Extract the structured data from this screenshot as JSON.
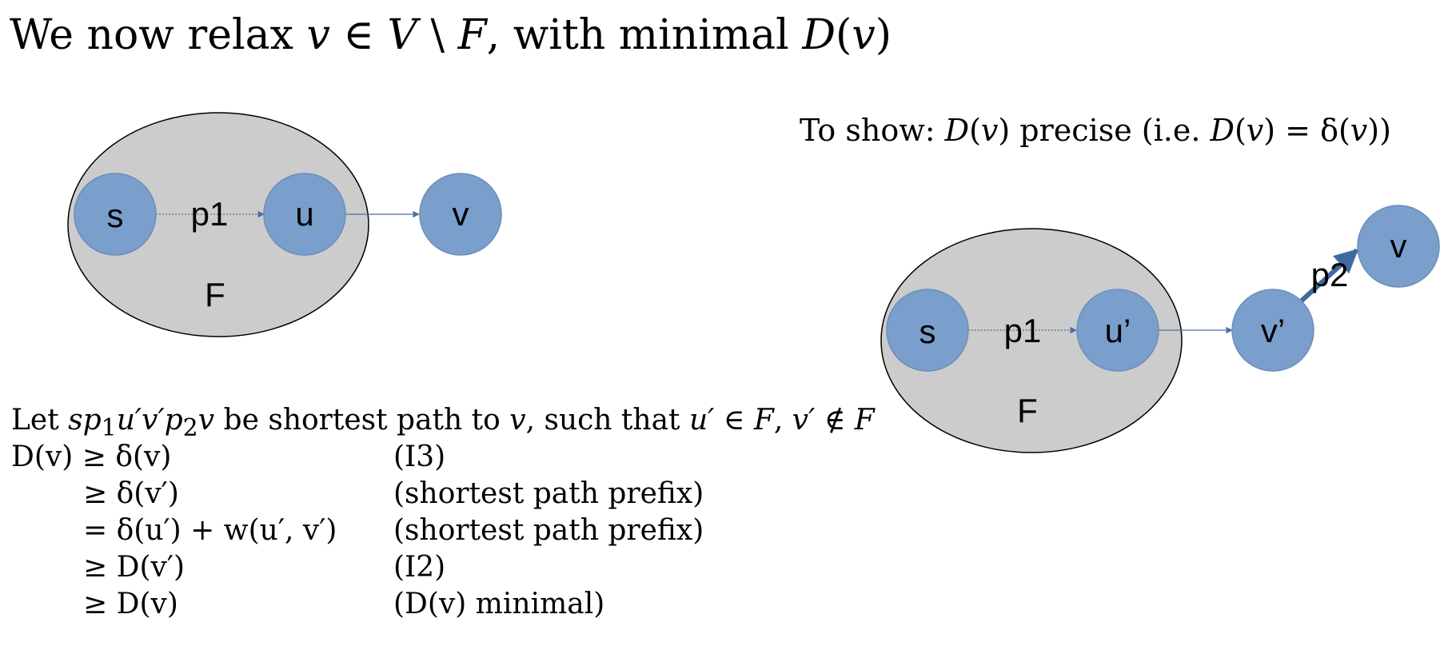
{
  "title": {
    "prefix": "We now relax ",
    "v": "v",
    "in": " ∈ ",
    "V": "V",
    "setminus": " \\ ",
    "F": "F",
    "rest": ", with minimal ",
    "D": "D",
    "paren_open": "(",
    "v2": "v",
    "paren_close": ")"
  },
  "to_show": {
    "prefix": "To show: ",
    "D1": "D",
    "p1": "(",
    "v1": "v",
    "p2": ") precise (i.e. ",
    "D2": "D",
    "p3": "(",
    "v2": "v",
    "p4": ") = δ(",
    "v3": "v",
    "p5": "))"
  },
  "left_graph": {
    "set_label": "F",
    "nodes": {
      "s": "s",
      "u": "u",
      "v": "v"
    },
    "edge_label": "p1"
  },
  "right_graph": {
    "set_label": "F",
    "nodes": {
      "s": "s",
      "u": "u’",
      "vp": "v’",
      "v": "v"
    },
    "edge_labels": {
      "p1": "p1",
      "p2": "p2"
    }
  },
  "proof": {
    "intro": {
      "t1": "Let ",
      "sp": "sp",
      "sub1": "1",
      "uvp": "u′v′p",
      "sub2": "2",
      "v": "v",
      "t2": " be shortest path to ",
      "v2": "v",
      "t3": ", such that ",
      "u": "u′",
      "t4": " ∈ ",
      "F": "F",
      "t5": ", ",
      "vp": "v′",
      "t6": " ∉ ",
      "F2": "F"
    },
    "lines": [
      {
        "lhs": "D(v) ≥ δ(v)",
        "why": "(I3)"
      },
      {
        "lhs": "≥ δ(v′)",
        "why": "(shortest path prefix)"
      },
      {
        "lhs": "= δ(u′) + w(u′, v′)",
        "why": "(shortest path prefix)"
      },
      {
        "lhs": "≥ D(v′)",
        "why": "(I2)"
      },
      {
        "lhs": "≥ D(v)",
        "why": "(D(v) minimal)"
      }
    ]
  },
  "colors": {
    "node_fill": "#7b9fcc",
    "node_stroke": "#6a8ebb",
    "set_fill": "#cccccc",
    "set_stroke": "#000000",
    "edge": "#4a6fa5"
  }
}
